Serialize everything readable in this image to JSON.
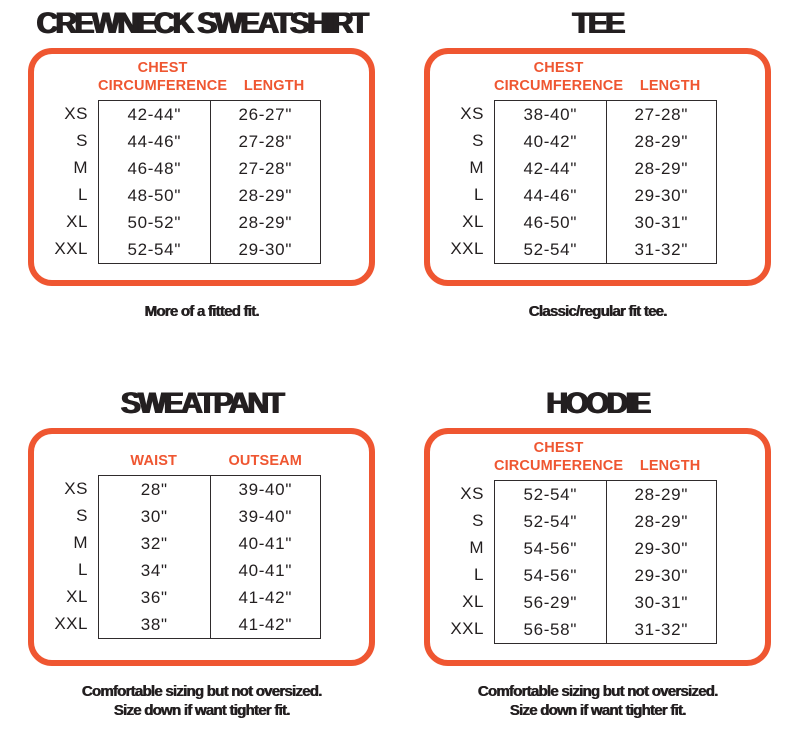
{
  "colors": {
    "accent": "#EF5631",
    "text": "#231F20",
    "table_border": "#2F2B2C",
    "background": "#FFFFFF"
  },
  "chart_data": [
    {
      "type": "table",
      "title": "CREWNECK SWEATSHIRT",
      "col1_header": "CHEST\nCIRCUMFERENCE",
      "col2_header": "LENGTH",
      "row_labels": [
        "XS",
        "S",
        "M",
        "L",
        "XL",
        "XXL"
      ],
      "rows": [
        {
          "size": "XS",
          "c1": "42-44\"",
          "c2": "26-27\""
        },
        {
          "size": "S",
          "c1": "44-46\"",
          "c2": "27-28\""
        },
        {
          "size": "M",
          "c1": "46-48\"",
          "c2": "27-28\""
        },
        {
          "size": "L",
          "c1": "48-50\"",
          "c2": "28-29\""
        },
        {
          "size": "XL",
          "c1": "50-52\"",
          "c2": "28-29\""
        },
        {
          "size": "XXL",
          "c1": "52-54\"",
          "c2": "29-30\""
        }
      ],
      "captions": [
        "More of a fitted fit."
      ]
    },
    {
      "type": "table",
      "title": "TEE",
      "col1_header": "CHEST\nCIRCUMFERENCE",
      "col2_header": "LENGTH",
      "row_labels": [
        "XS",
        "S",
        "M",
        "L",
        "XL",
        "XXL"
      ],
      "rows": [
        {
          "size": "XS",
          "c1": "38-40\"",
          "c2": "27-28\""
        },
        {
          "size": "S",
          "c1": "40-42\"",
          "c2": "28-29\""
        },
        {
          "size": "M",
          "c1": "42-44\"",
          "c2": "28-29\""
        },
        {
          "size": "L",
          "c1": "44-46\"",
          "c2": "29-30\""
        },
        {
          "size": "XL",
          "c1": "46-50\"",
          "c2": "30-31\""
        },
        {
          "size": "XXL",
          "c1": "52-54\"",
          "c2": "31-32\""
        }
      ],
      "captions": [
        "Classic/regular fit tee."
      ]
    },
    {
      "type": "table",
      "title": "SWEATPANT",
      "col1_header": "WAIST",
      "col2_header": "OUTSEAM",
      "row_labels": [
        "XS",
        "S",
        "M",
        "L",
        "XL",
        "XXL"
      ],
      "rows": [
        {
          "size": "XS",
          "c1": "28\"",
          "c2": "39-40\""
        },
        {
          "size": "S",
          "c1": "30\"",
          "c2": "39-40\""
        },
        {
          "size": "M",
          "c1": "32\"",
          "c2": "40-41\""
        },
        {
          "size": "L",
          "c1": "34\"",
          "c2": "40-41\""
        },
        {
          "size": "XL",
          "c1": "36\"",
          "c2": "41-42\""
        },
        {
          "size": "XXL",
          "c1": "38\"",
          "c2": "41-42\""
        }
      ],
      "captions": [
        "Comfortable sizing but not oversized.",
        "Size down if want tighter fit."
      ]
    },
    {
      "type": "table",
      "title": "HOODIE",
      "col1_header": "CHEST\nCIRCUMFERENCE",
      "col2_header": "LENGTH",
      "row_labels": [
        "XS",
        "S",
        "M",
        "L",
        "XL",
        "XXL"
      ],
      "rows": [
        {
          "size": "XS",
          "c1": "52-54\"",
          "c2": "28-29\""
        },
        {
          "size": "S",
          "c1": "52-54\"",
          "c2": "28-29\""
        },
        {
          "size": "M",
          "c1": "54-56\"",
          "c2": "29-30\""
        },
        {
          "size": "L",
          "c1": "54-56\"",
          "c2": "29-30\""
        },
        {
          "size": "XL",
          "c1": "56-29\"",
          "c2": "30-31\""
        },
        {
          "size": "XXL",
          "c1": "56-58\"",
          "c2": "31-32\""
        }
      ],
      "captions": [
        "Comfortable sizing but not oversized.",
        "Size down if want tighter fit."
      ]
    }
  ]
}
